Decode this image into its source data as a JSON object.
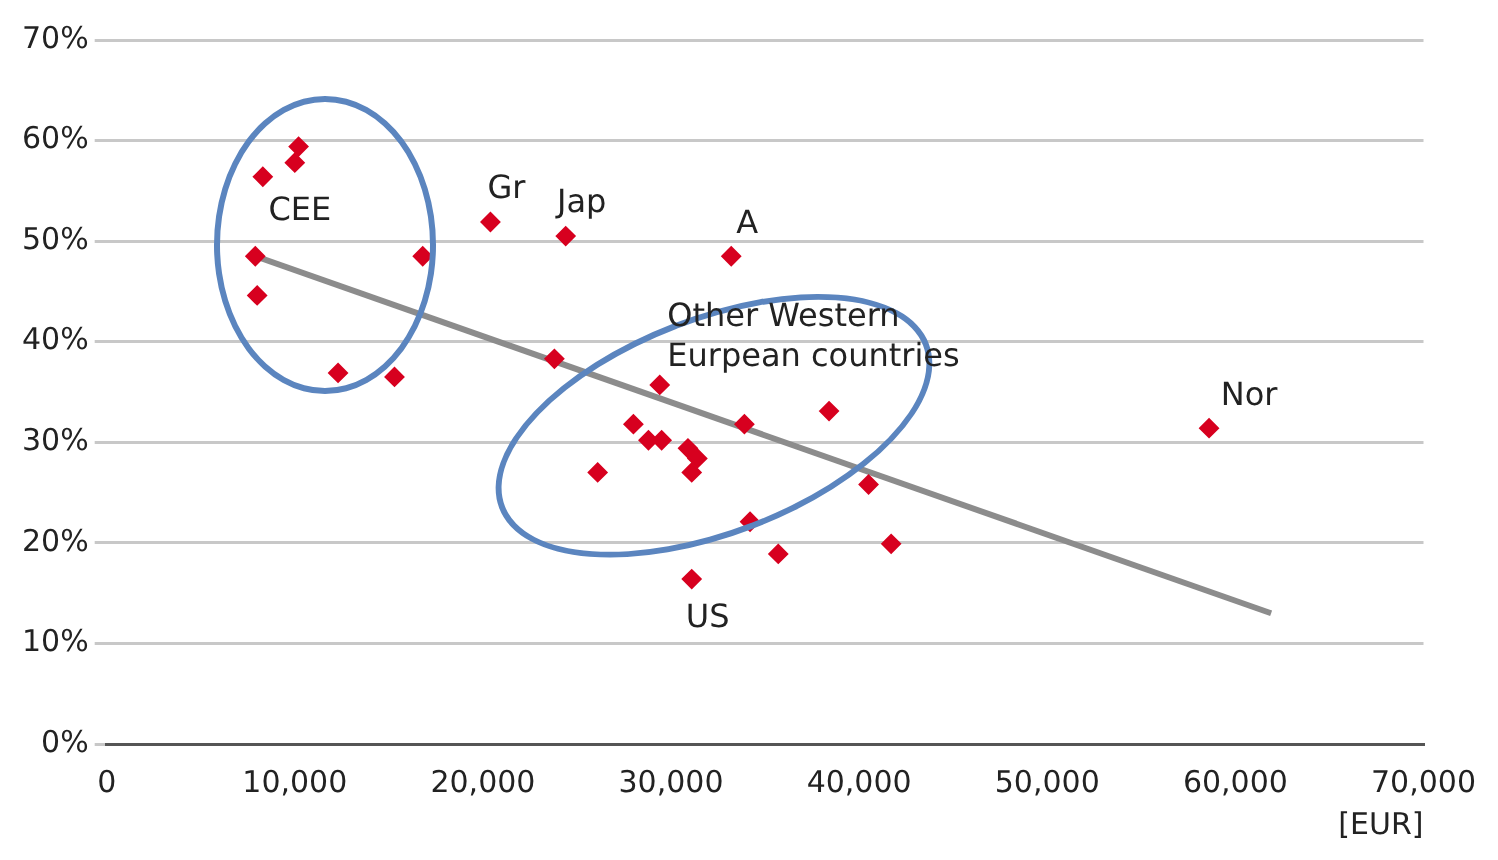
{
  "chart_data": {
    "type": "scatter",
    "xlabel": "[EUR]",
    "series": [
      {
        "color": "#d7001f",
        "marker": "diamond",
        "x": [
          10200,
          10000,
          8300,
          7900,
          8000,
          16800,
          12300,
          15300,
          20400,
          24400,
          33200,
          23800,
          29400,
          28000,
          28800,
          29500,
          30900,
          31400,
          31100,
          26100,
          33900,
          38400,
          40500,
          34200,
          35700,
          41700,
          31100,
          58600
        ],
        "values": [
          59.4,
          57.8,
          56.4,
          48.5,
          44.6,
          48.5,
          36.9,
          36.5,
          51.9,
          50.5,
          48.5,
          38.3,
          35.7,
          31.8,
          30.2,
          30.2,
          29.4,
          28.4,
          27.0,
          27.0,
          31.8,
          33.1,
          25.8,
          22.1,
          18.9,
          19.9,
          16.4,
          31.4
        ]
      },
      {
        "type": "line",
        "color": "#8c8c8c",
        "marker": "none",
        "x": [
          7900,
          61900
        ],
        "values": [
          48.5,
          13.0
        ]
      }
    ],
    "xlim": [
      0,
      70000
    ],
    "ylim": [
      0,
      70
    ],
    "xticks": [
      0,
      {
        "value": 10000,
        "label": "10,000"
      },
      {
        "value": 20000,
        "label": "20,000"
      },
      {
        "value": 30000,
        "label": "30,000"
      },
      {
        "value": 40000,
        "label": "40,000"
      },
      {
        "value": 50000,
        "label": "50,000"
      },
      {
        "value": 60000,
        "label": "60,000"
      },
      {
        "value": 70000,
        "label": "70,000"
      }
    ],
    "yticks": [
      {
        "value": 0,
        "label": "0%"
      },
      {
        "value": 10,
        "label": "10%"
      },
      {
        "value": 20,
        "label": "20%"
      },
      {
        "value": 30,
        "label": "30%"
      },
      {
        "value": 40,
        "label": "40%"
      },
      {
        "value": 50,
        "label": "50%"
      },
      {
        "value": 60,
        "label": "60%"
      },
      {
        "value": 70,
        "label": "70%"
      }
    ],
    "grid": "y",
    "legend": false,
    "annotations": [
      "CEE",
      {
        "text": "Gr",
        "x": 20400,
        "y": 51.9
      },
      {
        "text": "Jap",
        "x": 24400,
        "y": 50.5
      },
      {
        "text": "A",
        "x": 33200,
        "y": 48.5
      },
      "Other Western\nEurpean countries",
      {
        "text": "US",
        "x": 31100,
        "y": 16.4
      },
      {
        "text": "Nor",
        "x": 58600,
        "y": 31.4
      }
    ]
  }
}
